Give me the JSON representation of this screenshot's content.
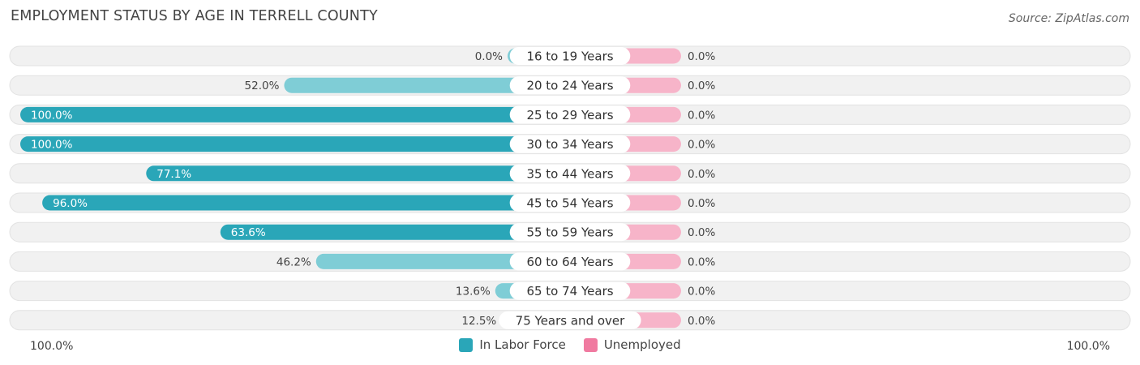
{
  "header": {
    "title": "EMPLOYMENT STATUS BY AGE IN TERRELL COUNTY",
    "source": "Source: ZipAtlas.com"
  },
  "colors": {
    "labor_force": "#2aa6b8",
    "labor_force_light": "#7fcdd6",
    "unemployed": "#f07aa0",
    "unemployed_light": "#f7b4c9",
    "row_background": "#f1f1f1"
  },
  "axis": {
    "left_label": "100.0%",
    "right_label": "100.0%"
  },
  "legend": [
    {
      "label": "In Labor Force",
      "color": "#2aa6b8"
    },
    {
      "label": "Unemployed",
      "color": "#f07aa0"
    }
  ],
  "chart_data": {
    "type": "bar",
    "orientation": "diverging-horizontal",
    "title": "EMPLOYMENT STATUS BY AGE IN TERRELL COUNTY",
    "categories": [
      "16 to 19 Years",
      "20 to 24 Years",
      "25 to 29 Years",
      "30 to 34 Years",
      "35 to 44 Years",
      "45 to 54 Years",
      "55 to 59 Years",
      "60 to 64 Years",
      "65 to 74 Years",
      "75 Years and over"
    ],
    "series": [
      {
        "name": "In Labor Force",
        "values": [
          0.0,
          52.0,
          100.0,
          100.0,
          77.1,
          96.0,
          63.6,
          46.2,
          13.6,
          12.5
        ],
        "labels": [
          "0.0%",
          "52.0%",
          "100.0%",
          "100.0%",
          "77.1%",
          "96.0%",
          "63.6%",
          "46.2%",
          "13.6%",
          "12.5%"
        ]
      },
      {
        "name": "Unemployed",
        "values": [
          0.0,
          0.0,
          0.0,
          0.0,
          0.0,
          0.0,
          0.0,
          0.0,
          0.0,
          0.0
        ],
        "labels": [
          "0.0%",
          "0.0%",
          "0.0%",
          "0.0%",
          "0.0%",
          "0.0%",
          "0.0%",
          "0.0%",
          "0.0%",
          "0.0%"
        ]
      }
    ],
    "xlim": [
      -100,
      100
    ],
    "legend_position": "bottom"
  }
}
